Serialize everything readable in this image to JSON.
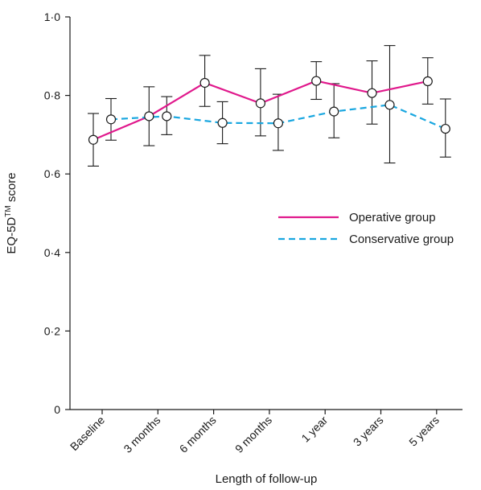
{
  "chart_data": {
    "type": "line",
    "title": "",
    "xlabel": "Length of follow-up",
    "ylabel": "EQ-5D",
    "ylabel_superscript": "TM",
    "ylabel_suffix": " score",
    "ylim": [
      0,
      1.0
    ],
    "yticks": [
      0,
      0.2,
      0.4,
      0.6,
      0.8,
      1.0
    ],
    "ytick_labels": [
      "0",
      "0·2",
      "0·4",
      "0·6",
      "0·8",
      "1·0"
    ],
    "categories": [
      "Baseline",
      "3 months",
      "6 months",
      "9 months",
      "1 year",
      "3 years",
      "5 years"
    ],
    "grid": false,
    "legend_position": "right",
    "series": [
      {
        "name": "Operative group",
        "color": "#e0198c",
        "line_style": "solid",
        "values": [
          0.687,
          0.747,
          0.832,
          0.78,
          0.837,
          0.806,
          0.836
        ],
        "err_low": [
          0.62,
          0.672,
          0.772,
          0.697,
          0.79,
          0.727,
          0.778
        ],
        "err_high": [
          0.754,
          0.822,
          0.902,
          0.868,
          0.886,
          0.888,
          0.896
        ]
      },
      {
        "name": "Conservative group",
        "color": "#1aa7e0",
        "line_style": "dashed",
        "values": [
          0.739,
          0.747,
          0.73,
          0.729,
          0.759,
          0.776,
          0.715
        ],
        "err_low": [
          0.686,
          0.7,
          0.677,
          0.66,
          0.692,
          0.628,
          0.643
        ],
        "err_high": [
          0.792,
          0.797,
          0.784,
          0.803,
          0.83,
          0.927,
          0.791
        ]
      }
    ]
  }
}
